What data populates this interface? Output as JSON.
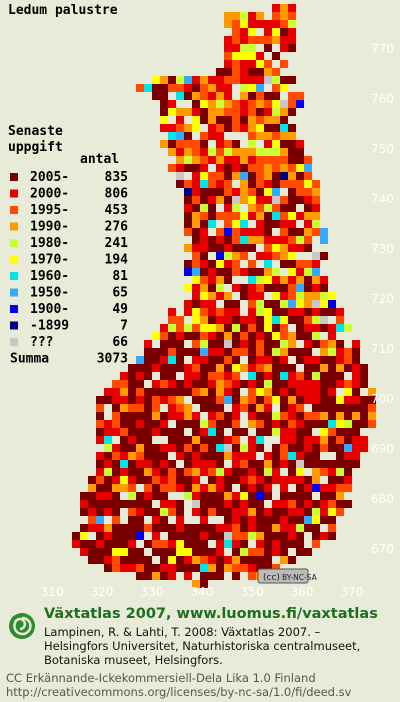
{
  "title": "Ledum palustre",
  "legend": {
    "heading": "Senaste uppgift",
    "count_heading": "antal",
    "entries": [
      {
        "label": "2005-",
        "count": 835,
        "color": "#7a0000"
      },
      {
        "label": "2000-",
        "count": 806,
        "color": "#e60000"
      },
      {
        "label": "1995-",
        "count": 453,
        "color": "#ff4a00"
      },
      {
        "label": "1990-",
        "count": 276,
        "color": "#ff9a00"
      },
      {
        "label": "1980-",
        "count": 241,
        "color": "#ccff33"
      },
      {
        "label": "1970-",
        "count": 194,
        "color": "#ffff00"
      },
      {
        "label": "1960-",
        "count": 81,
        "color": "#00e6e6"
      },
      {
        "label": "1950-",
        "count": 65,
        "color": "#33aaff"
      },
      {
        "label": "1900-",
        "count": 49,
        "color": "#0000ee"
      },
      {
        "label": "-1899",
        "count": 7,
        "color": "#000080"
      },
      {
        "label": "???",
        "count": 66,
        "color": "#c8c8c8"
      }
    ],
    "total_label": "Summa",
    "total": 3073
  },
  "grid_labels": {
    "north": [
      770,
      760,
      750,
      740,
      730,
      720,
      710,
      700,
      690,
      680,
      670
    ],
    "east": [
      310,
      320,
      330,
      340,
      350,
      360,
      370
    ]
  },
  "license_badge": "BY-NC-SA",
  "footer": {
    "heading": "Växtatlas 2007, www.luomus.fi/vaxtatlas",
    "citation": [
      "Lampinen, R. & Lahti, T. 2008: Växtatlas 2007. –",
      "Helsingfors Universitet, Naturhistoriska centralmuseet,",
      "Botaniska museet, Helsingfors."
    ],
    "license": [
      "CC Erkännande-Ickekommersiell-Dela Lika 1.0 Finland",
      "http://creativecommons.org/licenses/by-nc-sa/1.0/fi/deed.sv"
    ]
  }
}
